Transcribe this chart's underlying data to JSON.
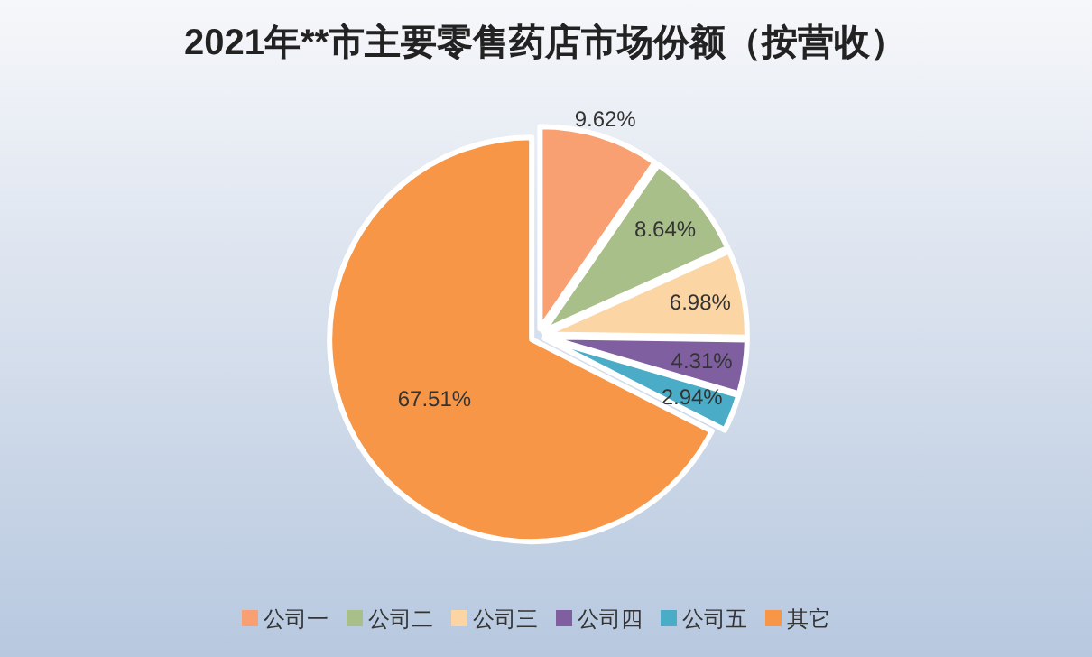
{
  "chart_data": {
    "type": "pie",
    "title": "2021年**市主要零售药店市场份额（按营收）",
    "categories": [
      "公司一",
      "公司二",
      "公司三",
      "公司四",
      "公司五",
      "其它"
    ],
    "values": [
      9.62,
      8.64,
      6.98,
      4.31,
      2.94,
      67.51
    ],
    "colors": [
      "#f9a073",
      "#a9bf8a",
      "#fcd5a4",
      "#7f5fa0",
      "#4aacc6",
      "#f79646"
    ],
    "value_labels": [
      "9.62%",
      "8.64%",
      "6.98%",
      "4.31%",
      "2.94%",
      "67.51%"
    ],
    "legend": "bottom"
  }
}
